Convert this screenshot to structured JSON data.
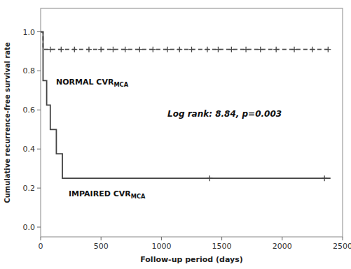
{
  "chart_data": {
    "type": "step",
    "xlabel": "Follow-up period (days)",
    "ylabel": "Cumulative recurrence-free survival rate",
    "xlim": [
      0,
      2500
    ],
    "ylim": [
      -0.05,
      1.12
    ],
    "xticks": [
      0,
      500,
      1000,
      1500,
      2000,
      2500
    ],
    "yticks": [
      {
        "value": 0.0,
        "label": "0.0"
      },
      0.2,
      0.4,
      0.6,
      0.8,
      {
        "value": 1.0,
        "label": "1.0"
      }
    ],
    "grid": false,
    "series": [
      {
        "color": "#444444",
        "line_style": "dashed",
        "x": [
          0,
          20,
          20,
          2400
        ],
        "values": [
          1.0,
          1.0,
          0.91,
          0.91
        ],
        "censors": {
          "marker": "plus",
          "x": [
            80,
            170,
            280,
            400,
            500,
            600,
            700,
            820,
            930,
            1050,
            1150,
            1250,
            1380,
            1470,
            1580,
            1700,
            1820,
            1950,
            2100,
            2250,
            2380
          ],
          "values": [
            0.91,
            0.91,
            0.91,
            0.91,
            0.91,
            0.91,
            0.91,
            0.91,
            0.91,
            0.91,
            0.91,
            0.91,
            0.91,
            0.91,
            0.91,
            0.91,
            0.91,
            0.91,
            0.91,
            0.91,
            0.91
          ]
        }
      },
      {
        "color": "#444444",
        "line_style": "solid",
        "x": [
          0,
          20,
          20,
          50,
          50,
          80,
          80,
          130,
          130,
          180,
          180,
          2400
        ],
        "values": [
          1.0,
          1.0,
          0.75,
          0.75,
          0.625,
          0.625,
          0.5,
          0.5,
          0.375,
          0.375,
          0.25,
          0.25
        ],
        "censors": {
          "marker": "plus",
          "x": [
            1400,
            2350
          ],
          "values": [
            0.25,
            0.25
          ]
        }
      }
    ],
    "annotations": [
      {
        "text": "NORMAL CVR",
        "subscript": "MCA"
      },
      {
        "text": "IMPAIRED CVR",
        "subscript": "MCA"
      },
      {
        "text": "Log rank: 8.84, p=0.003"
      }
    ]
  }
}
